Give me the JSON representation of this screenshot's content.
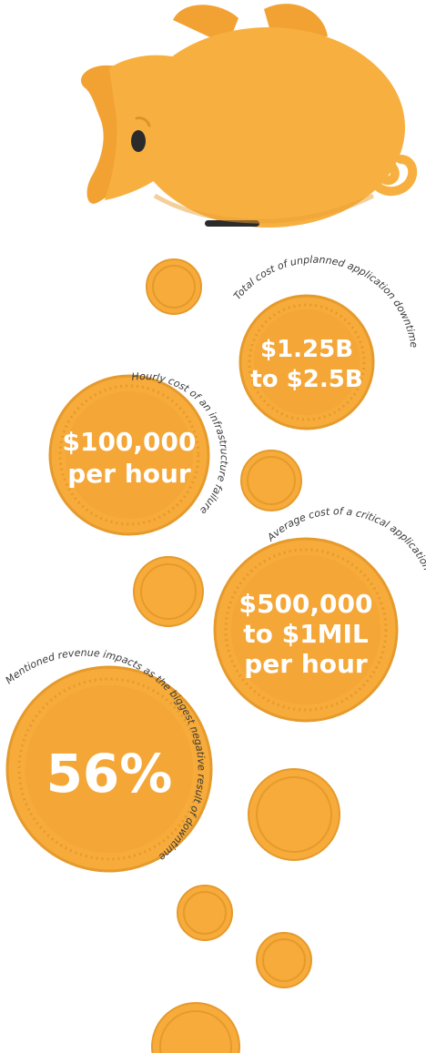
{
  "colors": {
    "coin_fill": "#f6ab3a",
    "coin_rim": "#e59a2c",
    "coin_inner": "#f4a637",
    "pig_body": "#f7b040",
    "pig_shadow": "#e9982b",
    "text_white": "#ffffff",
    "label_dark": "#3a3a3a"
  },
  "illustration": {
    "pig": "piggy-bank-upside-down",
    "falling_coins": "coins"
  },
  "stats": [
    {
      "id": "unplanned-downtime",
      "label": "Total cost of unplanned application downtime",
      "value_line1": "$1.25B",
      "value_line2": "to $2.5B"
    },
    {
      "id": "infrastructure-failure",
      "label": "Hourly cost of an infrastructure failure",
      "value_line1": "$100,000",
      "value_line2": "per hour"
    },
    {
      "id": "critical-app-failure",
      "label": "Average cost of a critical application failure",
      "value_line1": "$500,000",
      "value_line2": "to $1MIL",
      "value_line3": "per hour"
    },
    {
      "id": "revenue-impact",
      "label": "Mentioned revenue impacts as the biggest negative result of downtime",
      "value_line1": "56%"
    }
  ]
}
